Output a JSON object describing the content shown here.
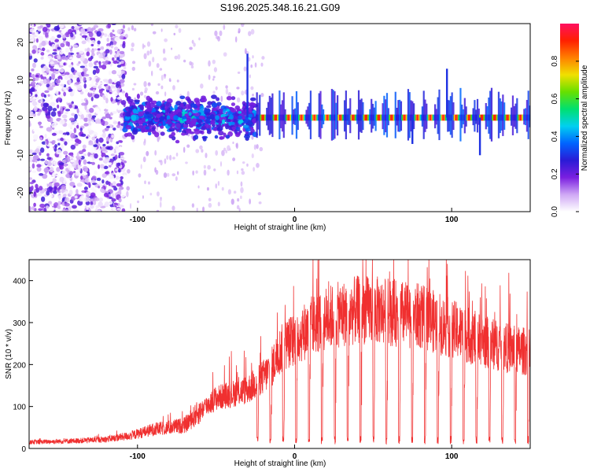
{
  "title": "S196.2025.348.16.21.G09",
  "chart_data": [
    {
      "type": "heatmap",
      "title": "S196.2025.348.16.21.G09",
      "xlabel": "Height of straight line (km)",
      "ylabel": "Frequency (Hz)",
      "xlim": [
        -169,
        150
      ],
      "ylim": [
        -25,
        25
      ],
      "x_ticks": [
        -100,
        0,
        100
      ],
      "x_tick_labels": [
        "-100",
        "0",
        "100"
      ],
      "y_ticks": [
        -20,
        -10,
        0,
        10,
        20
      ],
      "y_tick_labels": [
        "-20",
        "-10",
        "0",
        "10",
        "20"
      ],
      "colorbar": {
        "label": "Normalized spectral amplitude",
        "range": [
          0,
          1
        ],
        "ticks": [
          0.0,
          0.2,
          0.4,
          0.6,
          0.8
        ],
        "tick_labels": [
          "0.0",
          "0.2",
          "0.4",
          "0.6",
          "0.8"
        ],
        "colormap": "rainbow",
        "stops": [
          "#ffffff",
          "#cfa8f5",
          "#7a1fe0",
          "#2a1bd6",
          "#0064ff",
          "#00d0f0",
          "#00e070",
          "#66e000",
          "#f0e000",
          "#ff8000",
          "#ff2000",
          "#ff1060"
        ]
      },
      "regions": [
        {
          "x_range": [
            -169,
            -108
          ],
          "description_level": 0.25,
          "freq_spread": [
            -25,
            25
          ]
        },
        {
          "x_range": [
            -108,
            -25
          ],
          "description_level": 0.35,
          "freq_spread": [
            -8,
            8
          ]
        },
        {
          "x_range": [
            -25,
            150
          ],
          "description_level": 0.9,
          "freq_spread": [
            -1,
            1
          ],
          "period_km": 8.2
        }
      ]
    },
    {
      "type": "line",
      "xlabel": "Height of straight line (km)",
      "ylabel": "SNR (10 * v/v)",
      "xlim": [
        -169,
        150
      ],
      "ylim": [
        0,
        450
      ],
      "x_ticks": [
        -100,
        0,
        100
      ],
      "x_tick_labels": [
        "-100",
        "0",
        "100"
      ],
      "y_ticks": [
        0,
        100,
        200,
        300,
        400
      ],
      "y_tick_labels": [
        "0",
        "100",
        "200",
        "300",
        "400"
      ],
      "color": "#f03030",
      "envelope": {
        "x": [
          -169,
          -140,
          -120,
          -105,
          -90,
          -80,
          -70,
          -60,
          -50,
          -40,
          -30,
          -20,
          -15,
          -10,
          -5,
          0,
          10,
          20,
          30,
          40,
          50,
          60,
          70,
          80,
          90,
          100,
          110,
          120,
          130,
          140,
          150
        ],
        "y": [
          15,
          18,
          22,
          30,
          45,
          50,
          55,
          90,
          120,
          130,
          140,
          170,
          190,
          230,
          250,
          260,
          290,
          310,
          320,
          330,
          330,
          325,
          320,
          315,
          300,
          285,
          270,
          255,
          245,
          235,
          230
        ]
      },
      "dips": {
        "start_x": -24,
        "end_x": 150,
        "period_km": 8.2,
        "min_value": 10
      },
      "series": [
        {
          "name": "SNR",
          "values_description": "noisy, rises from ~15 to peak ~330 near 40 km, then declines to ~230; periodic deep notches after -24 km"
        }
      ]
    }
  ]
}
